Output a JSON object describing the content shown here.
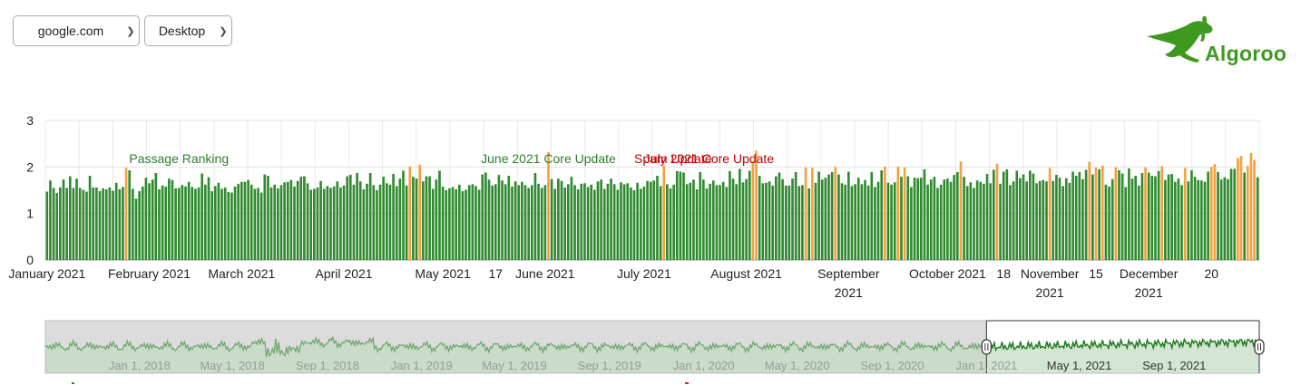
{
  "controls": {
    "site": {
      "value": "google.com",
      "icon": "chevron-down-icon"
    },
    "device": {
      "value": "Desktop",
      "icon": "chevron-down-icon"
    }
  },
  "logo": {
    "text": "Algoroo",
    "icon": "kangaroo-icon",
    "color": "#3d9a1f"
  },
  "colors": {
    "normal": "#2f8a2f",
    "medium": "#f5a03c",
    "high": "#e02020",
    "annotation_green": "#2e7d2e",
    "annotation_red": "#c00000"
  },
  "chart_data": {
    "type": "bar",
    "title": "",
    "xlabel": "",
    "ylabel": "",
    "ylim": [
      0,
      3
    ],
    "yticks": [
      0,
      1,
      2,
      3
    ],
    "x_start": "2021-01-01",
    "x_end": "2021-12-20",
    "grid": "vertical and horizontal",
    "legend": "none",
    "medium_threshold": 1.98,
    "high_threshold": 2.45,
    "x_tick_labels": [
      {
        "date": "2021-01-01",
        "label": "January 2021"
      },
      {
        "date": "2021-02-01",
        "label": "February 2021"
      },
      {
        "date": "2021-03-01",
        "label": "March 2021"
      },
      {
        "date": "2021-04-01",
        "label": "April 2021"
      },
      {
        "date": "2021-05-01",
        "label": "May 2021"
      },
      {
        "date": "2021-05-17",
        "label": "17"
      },
      {
        "date": "2021-06-01",
        "label": "June 2021"
      },
      {
        "date": "2021-07-01",
        "label": "July 2021"
      },
      {
        "date": "2021-08-01",
        "label": "August 2021"
      },
      {
        "date": "2021-09-01",
        "label": "September 2021"
      },
      {
        "date": "2021-10-01",
        "label": "October 2021"
      },
      {
        "date": "2021-10-18",
        "label": "18"
      },
      {
        "date": "2021-11-01",
        "label": "November 2021"
      },
      {
        "date": "2021-11-15",
        "label": "15"
      },
      {
        "date": "2021-12-01",
        "label": "December 2021"
      },
      {
        "date": "2021-12-20",
        "label": "20"
      }
    ],
    "annotations": [
      {
        "date": "2021-02-10",
        "label": "Passage Ranking",
        "color": "green"
      },
      {
        "date": "2021-06-02",
        "label": "June 2021 Core Update",
        "color": "green"
      },
      {
        "date": "2021-06-28",
        "label": "Spam Update",
        "color": "red"
      },
      {
        "date": "2021-07-01",
        "label": "July 2021 Core Update",
        "color": "red"
      }
    ],
    "series": [
      {
        "values": [
          1.47,
          1.71,
          1.55,
          1.44,
          1.56,
          1.73,
          1.55,
          1.8,
          1.55,
          1.75,
          1.55,
          1.51,
          1.47,
          1.81,
          1.56,
          1.56,
          1.48,
          1.54,
          1.52,
          1.56,
          1.49,
          1.66,
          1.52,
          1.57,
          1.98,
          1.93,
          1.53,
          1.32,
          1.48,
          1.58,
          1.77,
          1.65,
          1.73,
          1.87,
          1.52,
          1.6,
          1.58,
          1.75,
          1.72,
          1.54,
          1.55,
          1.61,
          1.58,
          1.68,
          1.57,
          1.53,
          1.56,
          1.86,
          1.62,
          1.78,
          1.48,
          1.59,
          1.66,
          1.53,
          1.56,
          1.46,
          1.45,
          1.58,
          1.64,
          1.68,
          1.68,
          1.72,
          1.62,
          1.53,
          1.55,
          1.45,
          1.84,
          1.81,
          1.56,
          1.62,
          1.54,
          1.61,
          1.67,
          1.68,
          1.72,
          1.58,
          1.7,
          1.79,
          1.8,
          1.65,
          1.51,
          1.53,
          1.56,
          1.7,
          1.53,
          1.59,
          1.55,
          1.58,
          1.69,
          1.56,
          1.6,
          1.8,
          1.83,
          1.62,
          1.87,
          1.69,
          1.52,
          1.64,
          1.87,
          1.61,
          1.5,
          1.62,
          1.79,
          1.65,
          1.62,
          1.85,
          1.59,
          1.75,
          1.92,
          1.6,
          2.01,
          1.79,
          1.75,
          2.05,
          1.69,
          1.8,
          1.8,
          1.53,
          1.73,
          1.92,
          1.58,
          1.5,
          1.54,
          1.57,
          1.52,
          1.62,
          1.48,
          1.51,
          1.61,
          1.63,
          1.59,
          1.51,
          1.84,
          1.88,
          1.73,
          1.6,
          1.63,
          1.83,
          1.71,
          1.63,
          1.81,
          1.58,
          1.69,
          1.61,
          1.68,
          1.61,
          1.55,
          1.61,
          1.87,
          1.64,
          1.55,
          1.61,
          2.32,
          1.74,
          1.53,
          1.75,
          1.7,
          1.56,
          1.63,
          1.79,
          1.61,
          1.52,
          1.64,
          1.65,
          1.57,
          1.62,
          1.51,
          1.69,
          1.73,
          1.53,
          1.64,
          1.75,
          1.63,
          1.51,
          1.67,
          1.63,
          1.65,
          1.56,
          1.5,
          1.66,
          1.53,
          1.58,
          1.7,
          1.68,
          1.71,
          1.81,
          1.59,
          2.03,
          1.63,
          1.54,
          1.62,
          1.91,
          1.9,
          1.88,
          1.63,
          1.66,
          1.73,
          1.52,
          1.89,
          1.73,
          1.54,
          1.64,
          1.71,
          1.61,
          1.61,
          1.68,
          1.57,
          1.91,
          1.75,
          1.63,
          1.96,
          1.67,
          1.74,
          1.92,
          2.12,
          2.35,
          1.81,
          1.65,
          1.66,
          1.69,
          1.6,
          1.8,
          1.88,
          1.74,
          1.6,
          1.6,
          1.75,
          1.89,
          1.59,
          1.61,
          1.99,
          1.54,
          1.98,
          1.66,
          1.9,
          1.73,
          1.77,
          1.84,
          1.89,
          2.0,
          1.84,
          1.65,
          1.62,
          1.9,
          1.59,
          1.63,
          1.77,
          1.63,
          1.72,
          1.6,
          1.89,
          1.57,
          1.68,
          1.93,
          2.01,
          1.66,
          1.62,
          1.67,
          2.01,
          1.79,
          1.99,
          1.8,
          1.57,
          1.77,
          1.76,
          1.77,
          1.95,
          1.62,
          1.73,
          1.79,
          1.55,
          1.62,
          1.73,
          1.75,
          1.68,
          1.83,
          1.89,
          2.12,
          1.79,
          1.59,
          1.67,
          1.55,
          1.71,
          1.68,
          1.64,
          1.85,
          1.65,
          1.94,
          2.07,
          1.64,
          1.9,
          1.95,
          1.61,
          1.69,
          1.92,
          1.76,
          1.84,
          1.69,
          1.92,
          1.86,
          1.65,
          1.7,
          1.72,
          1.69,
          1.98,
          1.7,
          1.83,
          1.77,
          1.59,
          1.76,
          1.66,
          1.9,
          1.81,
          1.89,
          1.74,
          1.94,
          2.11,
          1.84,
          1.99,
          1.95,
          2.03,
          1.62,
          1.58,
          1.74,
          1.99,
          1.93,
          1.86,
          1.57,
          1.97,
          1.75,
          1.81,
          1.6,
          1.87,
          1.99,
          1.88,
          1.81,
          1.8,
          1.91,
          2.02,
          1.72,
          1.84,
          1.85,
          1.68,
          1.75,
          1.61,
          1.98,
          1.69,
          1.93,
          1.79,
          1.72,
          1.71,
          1.68,
          1.9,
          2.0,
          2.06,
          1.89,
          1.73,
          1.78,
          1.74,
          1.96,
          1.96,
          2.19,
          2.24,
          1.88,
          2.02,
          2.3,
          2.15,
          1.78
        ]
      }
    ]
  },
  "navigator": {
    "x_labels": [
      "Jan 1, 2018",
      "May 1, 2018",
      "Sep 1, 2018",
      "Jan 1, 2019",
      "May 1, 2019",
      "Sep 1, 2019",
      "Jan 1, 2020",
      "May 1, 2020",
      "Sep 1, 2020",
      "Jan 1, 2021",
      "May 1, 2021",
      "Sep 1, 2021"
    ],
    "range_start": "2021-01-01",
    "range_end": "2021-12-20",
    "handle_icon": "drag-handle-icon"
  }
}
